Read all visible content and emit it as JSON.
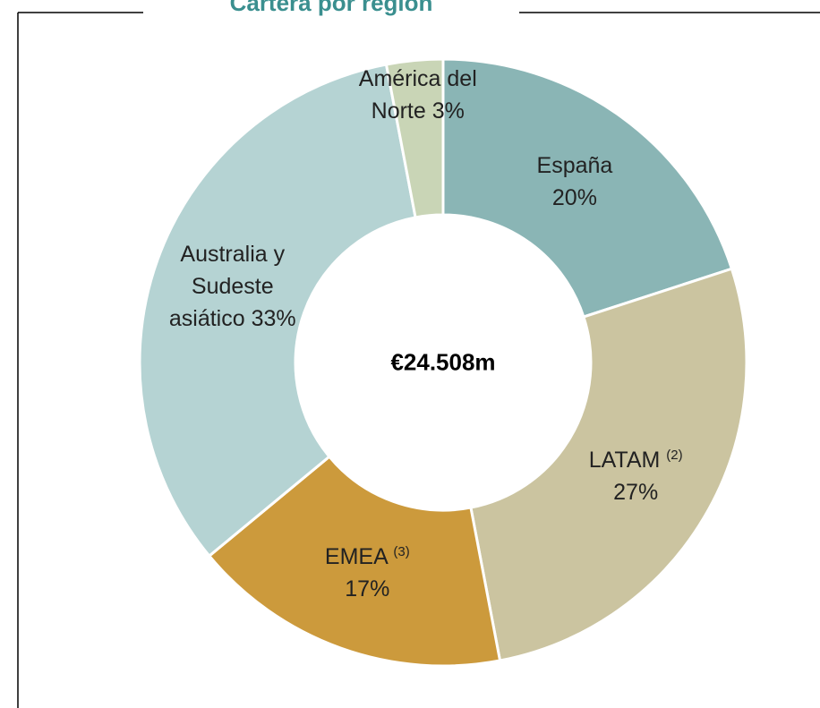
{
  "chart_data": {
    "type": "donut",
    "title": "Cartera por región",
    "center_label": "€24.508m",
    "categories": [
      "España",
      "LATAM",
      "EMEA",
      "Australia y Sudeste asiático",
      "América del Norte"
    ],
    "markers": [
      null,
      "(2)",
      "(3)",
      null,
      null
    ],
    "values": [
      20,
      27,
      17,
      33,
      3
    ],
    "value_labels": [
      "20%",
      "27%",
      "17%",
      "33%",
      "3%"
    ],
    "colors": [
      "#8ab5b5",
      "#cbc4a0",
      "#cc9a3c",
      "#b5d3d3",
      "#c9d5b6"
    ]
  }
}
